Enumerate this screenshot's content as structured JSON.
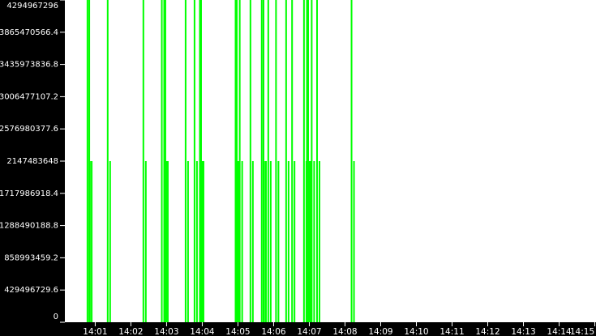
{
  "chart_data": {
    "type": "bar",
    "title": "",
    "xlabel": "",
    "ylabel": "",
    "xlim": [
      "14:00:09",
      "14:15:02"
    ],
    "ylim": [
      0,
      4294967296
    ],
    "x_tick_labels": [
      "14:01",
      "14:02",
      "14:03",
      "14:04",
      "14:05",
      "14:06",
      "14:07",
      "14:08",
      "14:09",
      "14:10",
      "14:11",
      "14:12",
      "14:13",
      "14:14",
      "14:15"
    ],
    "y_tick_labels": [
      "0",
      "429496729.6",
      "858993459.2",
      "1288490188.8",
      "1717986918.4",
      "2147483648",
      "2576980377.6",
      "3006477107.2",
      "3435973836.8",
      "3865470566.4",
      "4294967296"
    ],
    "grid": false,
    "colors": {
      "series": "#00ff00",
      "axis_bg": "#000000",
      "axis_text": "#ffffff",
      "plot_bg": "#ffffff"
    },
    "series": [
      {
        "x": [
          "14:00:47",
          "14:00:50",
          "14:01:21",
          "14:02:21",
          "14:02:52",
          "14:02:56",
          "14:02:58",
          "14:03:32",
          "14:03:47",
          "14:03:56",
          "14:03:58",
          "14:04:56",
          "14:04:58",
          "14:05:03",
          "14:05:21",
          "14:05:40",
          "14:05:43",
          "14:05:51",
          "14:06:04",
          "14:06:21",
          "14:06:31",
          "14:06:51",
          "14:06:56",
          "14:06:58",
          "14:07:04",
          "14:07:13",
          "14:08:11"
        ],
        "values": [
          4294967296,
          4294967296,
          4294967296,
          4294967296,
          4294967296,
          4294967296,
          4294967296,
          4294967296,
          4294967296,
          4294967296,
          4294967296,
          4294967296,
          4294967296,
          4294967296,
          4294967296,
          4294967296,
          4294967296,
          4294967296,
          4294967296,
          4294967296,
          4294967296,
          4294967296,
          4294967296,
          4294967296,
          4294967296,
          4294967296,
          4294967296
        ]
      },
      {
        "x": [
          "14:00:47",
          "14:00:50",
          "14:01:21",
          "14:02:21",
          "14:02:52",
          "14:02:56",
          "14:02:58",
          "14:03:32",
          "14:03:47",
          "14:03:56",
          "14:03:58",
          "14:04:56",
          "14:04:58",
          "14:05:03",
          "14:05:21",
          "14:05:40",
          "14:05:43",
          "14:05:51",
          "14:06:04",
          "14:06:21",
          "14:06:31",
          "14:06:51",
          "14:06:56",
          "14:06:58",
          "14:07:04",
          "14:07:13",
          "14:08:11"
        ],
        "values": [
          2147483648,
          2147483648,
          2147483648,
          2147483648,
          2147483648,
          2147483648,
          2147483648,
          2147483648,
          2147483648,
          2147483648,
          2147483648,
          2147483648,
          2147483648,
          2147483648,
          2147483648,
          2147483648,
          2147483648,
          2147483648,
          2147483648,
          2147483648,
          2147483648,
          2147483648,
          2147483648,
          2147483648,
          2147483648,
          2147483648,
          2147483648
        ]
      }
    ]
  }
}
